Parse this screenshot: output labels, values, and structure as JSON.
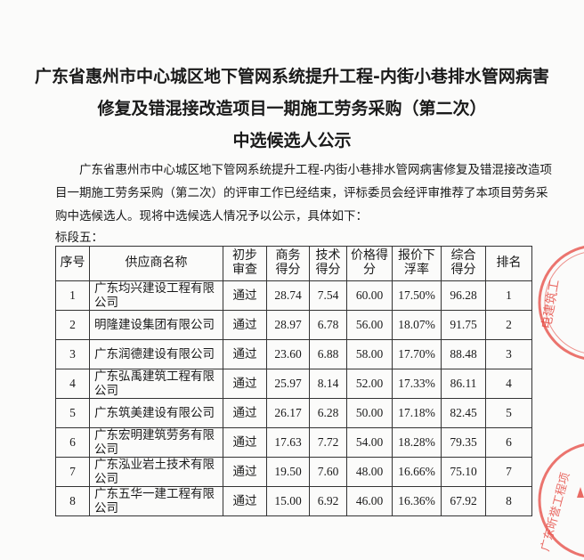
{
  "title": {
    "line1": "广东省惠州市中心城区地下管网系统提升工程-内街小巷排水管网病害",
    "line2": "修复及错混接改造项目一期施工劳务采购（第二次）",
    "line3": "中选候选人公示"
  },
  "intro": "广东省惠州市中心城区地下管网系统提升工程-内街小巷排水管网病害修复及错混接改造项目一期施工劳务采购（第二次）的评审工作已经结束，评标委员会经评审推荐了本项目劳务采购中选候选人。现将中选候选人情况予以公示，具体如下：",
  "section_label": "标段五：",
  "table": {
    "headers": [
      "序号",
      "供应商名称",
      "初步审查",
      "商务得分",
      "技术得分",
      "价格得分",
      "报价下浮率",
      "综合得分",
      "排名"
    ],
    "rows": [
      [
        "1",
        "广东均兴建设工程有限公司",
        "通过",
        "28.74",
        "7.54",
        "60.00",
        "17.50%",
        "96.28",
        "1"
      ],
      [
        "2",
        "明隆建设集团有限公司",
        "通过",
        "28.97",
        "6.78",
        "56.00",
        "18.07%",
        "91.75",
        "2"
      ],
      [
        "3",
        "广东润德建设有限公司",
        "通过",
        "23.60",
        "6.88",
        "58.00",
        "17.70%",
        "88.48",
        "3"
      ],
      [
        "4",
        "广东弘禹建筑工程有限公司",
        "通过",
        "25.97",
        "8.14",
        "52.00",
        "17.33%",
        "86.11",
        "4"
      ],
      [
        "5",
        "广东筑美建设有限公司",
        "通过",
        "26.17",
        "6.28",
        "50.00",
        "17.18%",
        "82.45",
        "5"
      ],
      [
        "6",
        "广东宏明建筑劳务有限公司",
        "通过",
        "17.63",
        "7.72",
        "54.00",
        "18.28%",
        "79.35",
        "6"
      ],
      [
        "7",
        "广东泓业岩土技术有限公司",
        "通过",
        "19.50",
        "7.60",
        "48.00",
        "16.66%",
        "75.10",
        "7"
      ],
      [
        "8",
        "广东五华一建工程有限公司",
        "通过",
        "15.00",
        "6.92",
        "46.00",
        "16.36%",
        "67.92",
        "8"
      ]
    ]
  },
  "stamps": {
    "color": "#e5473f",
    "top_text": "电建筑工",
    "bottom_text": "广东昕誉工程项"
  }
}
